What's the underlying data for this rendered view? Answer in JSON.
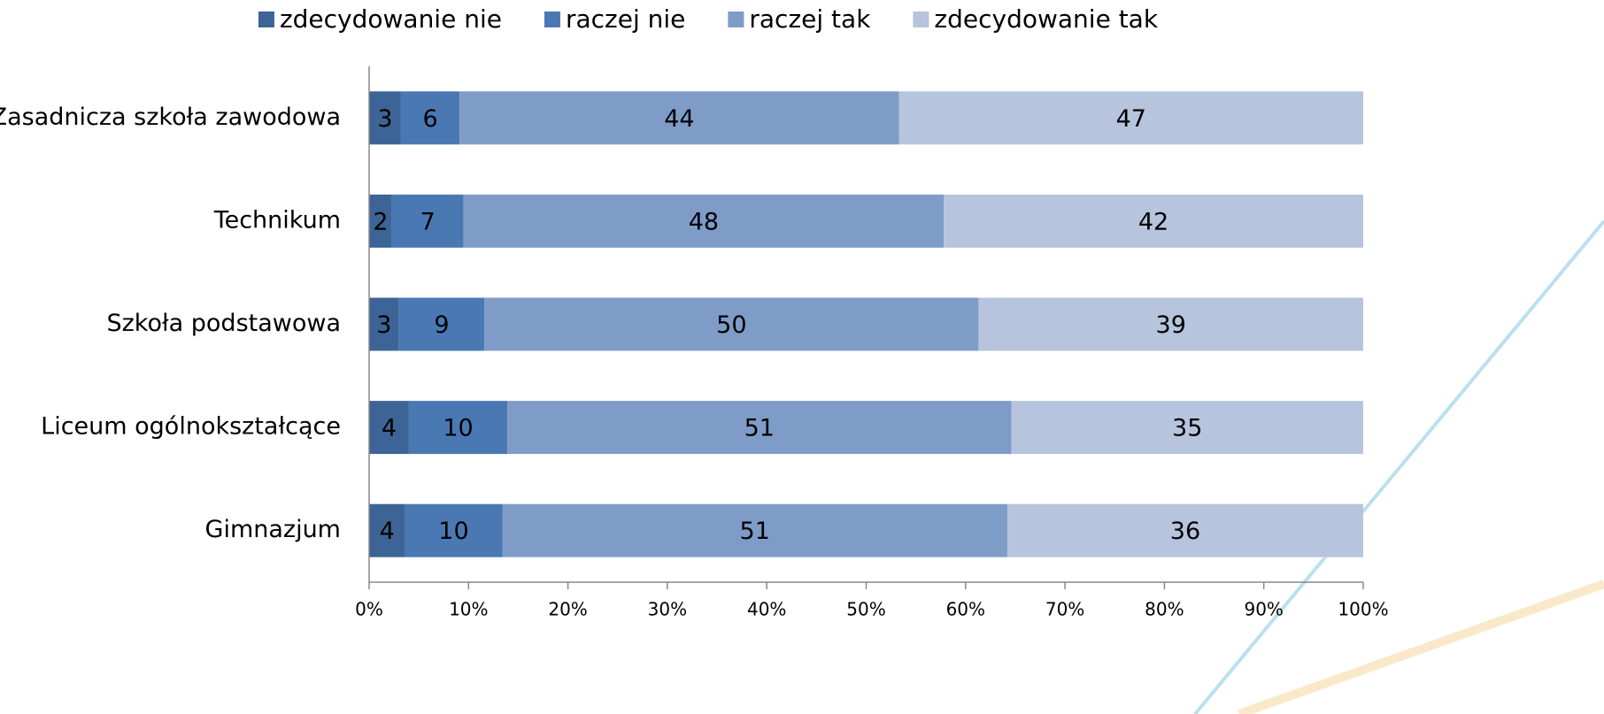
{
  "chart_data": {
    "type": "stacked_bar_horizontal",
    "categories": [
      "Zasadnicza szkoła zawodowa",
      "Technikum",
      "Szkoła podstawowa",
      "Liceum ogólnokształcące",
      "Gimnazjum"
    ],
    "series": [
      {
        "name": "zdecydowanie nie",
        "color": "#3d6496",
        "values": [
          3.2,
          2.3,
          3.0,
          4.0,
          3.6
        ],
        "value_labels": [
          "3",
          "2",
          "3",
          "4",
          "4"
        ]
      },
      {
        "name": "raczej nie",
        "color": "#4a78b3",
        "values": [
          5.9,
          7.2,
          8.6,
          9.9,
          9.8
        ],
        "value_labels": [
          "6",
          "7",
          "9",
          "10",
          "10"
        ]
      },
      {
        "name": "raczej tak",
        "color": "#7f9cc8",
        "values": [
          44.2,
          48.3,
          49.7,
          50.7,
          50.8
        ],
        "value_labels": [
          "44",
          "48",
          "50",
          "51",
          "51"
        ]
      },
      {
        "name": "zdecydowanie tak",
        "color": "#b7c4de",
        "values": [
          46.7,
          42.2,
          38.7,
          35.4,
          35.8
        ],
        "value_labels": [
          "47",
          "42",
          "39",
          "35",
          "36"
        ]
      }
    ],
    "xlim": [
      0,
      100
    ],
    "xticks": [
      {
        "value": 0,
        "label": "0%"
      },
      {
        "value": 10,
        "label": "10%"
      },
      {
        "value": 20,
        "label": "20%"
      },
      {
        "value": 30,
        "label": "30%"
      },
      {
        "value": 40,
        "label": "40%"
      },
      {
        "value": 50,
        "label": "50%"
      },
      {
        "value": 60,
        "label": "60%"
      },
      {
        "value": 70,
        "label": "70%"
      },
      {
        "value": 80,
        "label": "80%"
      },
      {
        "value": 90,
        "label": "90%"
      },
      {
        "value": 100,
        "label": "100%"
      }
    ],
    "legend": "top"
  }
}
